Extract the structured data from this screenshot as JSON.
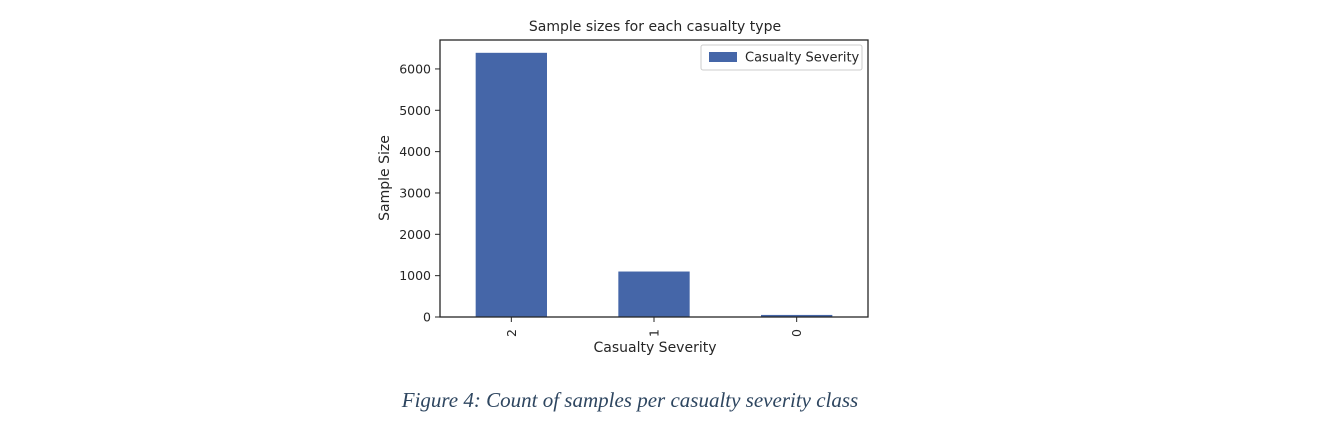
{
  "chart_data": {
    "type": "bar",
    "title": "Sample sizes for each casualty type",
    "xlabel": "Casualty Severity",
    "ylabel": "Sample Size",
    "categories": [
      "2",
      "1",
      "0"
    ],
    "series": [
      {
        "name": "Casualty Severity",
        "values": [
          6390,
          1100,
          50
        ]
      }
    ],
    "ylim": [
      0,
      6700
    ],
    "yticks": [
      0,
      1000,
      2000,
      3000,
      4000,
      5000,
      6000
    ],
    "xtick_rotation": 90,
    "grid": false,
    "legend_position": "top-right",
    "colors": {
      "bar": "#4566a8",
      "axes": "#262626"
    }
  },
  "caption": "Figure 4: Count of samples per casualty severity class"
}
